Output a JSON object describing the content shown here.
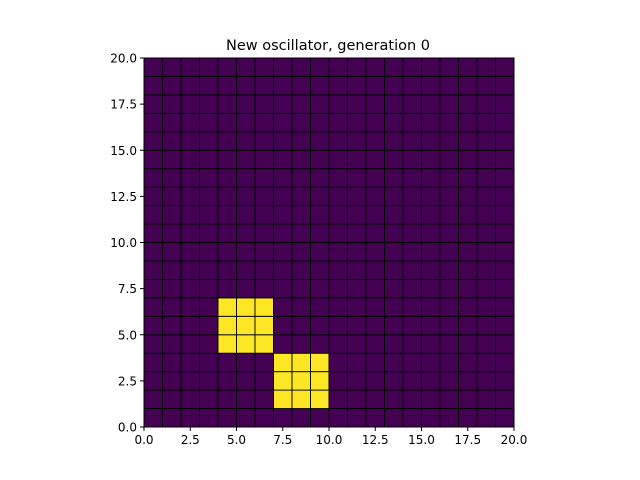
{
  "chart_data": {
    "type": "heatmap",
    "title": "New oscillator, generation 0",
    "xlabel": "",
    "ylabel": "",
    "xlim": [
      0,
      20
    ],
    "ylim": [
      0,
      20
    ],
    "grid_size": [
      20,
      20
    ],
    "xticks": [
      "0.0",
      "2.5",
      "5.0",
      "7.5",
      "10.0",
      "12.5",
      "15.0",
      "17.5",
      "20.0"
    ],
    "yticks": [
      "0.0",
      "2.5",
      "5.0",
      "7.5",
      "10.0",
      "12.5",
      "15.0",
      "17.5",
      "20.0"
    ],
    "dead_color": "#440154",
    "alive_color": "#fde725",
    "cell_edge_color": "#000000",
    "live_cells": [
      [
        4,
        4
      ],
      [
        5,
        4
      ],
      [
        6,
        4
      ],
      [
        4,
        5
      ],
      [
        5,
        5
      ],
      [
        6,
        5
      ],
      [
        4,
        6
      ],
      [
        5,
        6
      ],
      [
        6,
        6
      ],
      [
        7,
        1
      ],
      [
        8,
        1
      ],
      [
        9,
        1
      ],
      [
        7,
        2
      ],
      [
        8,
        2
      ],
      [
        9,
        2
      ],
      [
        7,
        3
      ],
      [
        8,
        3
      ],
      [
        9,
        3
      ]
    ]
  }
}
